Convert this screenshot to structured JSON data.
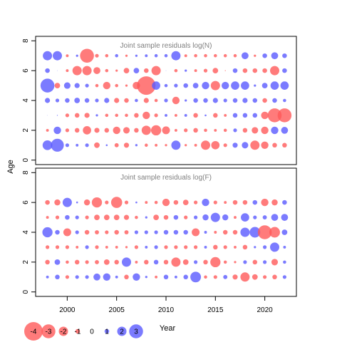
{
  "figure": {
    "ylabel": "Age",
    "xlabel": "Year",
    "xticks": [
      "2000",
      "2005",
      "2010",
      "2015",
      "2020"
    ],
    "yticks": [
      "0",
      "2",
      "4",
      "6",
      "8"
    ],
    "legend_values": [
      "-4",
      "-3",
      "-2",
      "-1",
      "0",
      "1",
      "2",
      "3"
    ],
    "colors": {
      "negative": "#ff5a5a",
      "positive": "#5a5aff",
      "opacity": 0.8
    }
  },
  "chart_data": [
    {
      "type": "scatter",
      "title": "Joint sample residuals log(N)",
      "xlabel": "Year",
      "ylabel": "Age",
      "xlim": [
        1996.8,
        2023.2
      ],
      "ylim": [
        -0.3,
        8.3
      ],
      "grid": false,
      "years": [
        1998,
        1999,
        2000,
        2001,
        2002,
        2003,
        2004,
        2005,
        2006,
        2007,
        2008,
        2009,
        2010,
        2011,
        2012,
        2013,
        2014,
        2015,
        2016,
        2017,
        2018,
        2019,
        2020,
        2021,
        2022
      ],
      "ages": [
        1,
        2,
        3,
        4,
        5,
        6,
        7
      ],
      "residuals": {
        "7": [
          2,
          2,
          -0.6,
          0.5,
          -3,
          -0.8,
          -0.7,
          0.7,
          -0.5,
          0.5,
          0.6,
          0.7,
          0.7,
          2,
          -0.6,
          -0.7,
          -0.7,
          -0.7,
          -0.7,
          -0.7,
          1.5,
          -0.5,
          1,
          1.5,
          1
        ],
        "6": [
          1,
          0.1,
          -0.6,
          -2,
          -2,
          -1.5,
          -0.7,
          -0.5,
          -1.2,
          1.2,
          -1,
          -2,
          0.1,
          -0.7,
          0.5,
          -0.6,
          -0.8,
          -1.2,
          -0.2,
          1,
          -1,
          -1,
          -1,
          -2,
          1
        ],
        "5": [
          3,
          -1.2,
          1.4,
          1.1,
          0.8,
          -0.7,
          -1.6,
          -0.7,
          -0.5,
          -1.6,
          -4,
          1.8,
          0.7,
          0.8,
          1,
          1.2,
          1.6,
          -2,
          1.6,
          1.8,
          1.8,
          0.5,
          1.2,
          1.8,
          1.8
        ],
        "4": [
          1.1,
          0.8,
          1,
          1.2,
          1,
          0.8,
          1.1,
          -1.1,
          -1,
          0.7,
          -1.1,
          -0.7,
          0.8,
          -1.6,
          0.5,
          1,
          1,
          1.1,
          0.8,
          1,
          1.1,
          1,
          -1,
          1,
          0.7
        ],
        "3": [
          0.1,
          0.2,
          -0.8,
          -1,
          -1.1,
          0.5,
          -0.7,
          -0.7,
          -0.7,
          -1,
          -1.6,
          -0.8,
          0.6,
          -0.6,
          0.6,
          -1,
          0.4,
          -1,
          -0.6,
          1,
          1,
          1,
          -1.6,
          -3,
          -3
        ],
        "2": [
          -0.6,
          1.6,
          -0.8,
          -1,
          -1.8,
          -1.1,
          -1,
          -1.6,
          -1.4,
          -1,
          -2,
          -2.2,
          -1.7,
          -0.6,
          -0.8,
          -1,
          -0.7,
          -0.6,
          -0.7,
          0.8,
          -1,
          -1.4,
          -1.6,
          1.6,
          1.5
        ],
        "1": [
          2.1,
          2.8,
          0.8,
          0.6,
          0.8,
          -1.2,
          0.4,
          -0.9,
          -1.1,
          0.5,
          -0.7,
          -0.6,
          -0.5,
          2,
          -0.5,
          -0.6,
          -2,
          -1.8,
          -0.8,
          1.1,
          1.4,
          -2,
          -1.6,
          -1,
          -1
        ]
      }
    },
    {
      "type": "scatter",
      "title": "Joint sample residuals log(F)",
      "xlabel": "Year",
      "ylabel": "Age",
      "xlim": [
        1996.8,
        2023.2
      ],
      "ylim": [
        -0.3,
        8.3
      ],
      "grid": false,
      "years": [
        1998,
        1999,
        2000,
        2001,
        2002,
        2003,
        2004,
        2005,
        2006,
        2007,
        2008,
        2009,
        2010,
        2011,
        2012,
        2013,
        2014,
        2015,
        2016,
        2017,
        2018,
        2019,
        2020,
        2021,
        2022
      ],
      "ages": [
        1,
        2,
        3,
        4,
        5,
        6
      ],
      "residuals": {
        "6": [
          -1,
          -1.3,
          2,
          0.4,
          -1.3,
          -2.2,
          -0.8,
          -2.4,
          -0.8,
          0.4,
          -0.6,
          -0.7,
          -1.6,
          -1,
          -1.2,
          -0.8,
          1.6,
          -0.8,
          -0.6,
          -1,
          -1,
          1,
          -1.6,
          -1.3,
          1
        ],
        "5": [
          -0.6,
          -0.8,
          1,
          0.8,
          -0.8,
          -1.2,
          -1.2,
          -1.2,
          -1.1,
          -0.7,
          0.5,
          -1.2,
          -1,
          1,
          -0.8,
          0.8,
          1.3,
          2,
          1.3,
          -0.6,
          1.8,
          0.8,
          0.9,
          1.5,
          1.5
        ],
        "4": [
          2.2,
          1,
          -1.7,
          0.8,
          -1,
          -0.9,
          -0.8,
          -1,
          -0.9,
          0.8,
          0.8,
          0.8,
          1,
          1,
          1,
          -1.7,
          0.6,
          -0.6,
          -1,
          -1,
          2,
          2.3,
          -3,
          -2.3,
          1.2
        ],
        "3": [
          -0.8,
          -0.8,
          -0.8,
          -0.6,
          0.8,
          -0.8,
          -0.6,
          -0.6,
          -0.5,
          -0.8,
          0.6,
          0.8,
          -0.8,
          -0.8,
          -0.8,
          -0.8,
          0.6,
          -1,
          -0.8,
          -0.6,
          -1,
          0.5,
          0.8,
          2,
          0.6
        ],
        "2": [
          -1,
          1.2,
          -0.7,
          -1,
          -0.8,
          -0.9,
          -1.2,
          -1,
          2,
          -0.6,
          -1,
          1,
          -1,
          -2,
          -1.2,
          0.8,
          -1,
          -2.2,
          -0.7,
          -0.5,
          0.8,
          -1,
          0.8,
          -1.4,
          0.7
        ],
        "1": [
          0.6,
          1,
          -0.8,
          0.8,
          0.8,
          1.5,
          1.6,
          0.6,
          -1,
          1.6,
          0.5,
          -0.6,
          1,
          0.6,
          1,
          2.3,
          -0.7,
          -0.8,
          0.9,
          -1.1,
          -2,
          -1.2,
          -0.8,
          -1,
          0.8
        ]
      }
    }
  ]
}
